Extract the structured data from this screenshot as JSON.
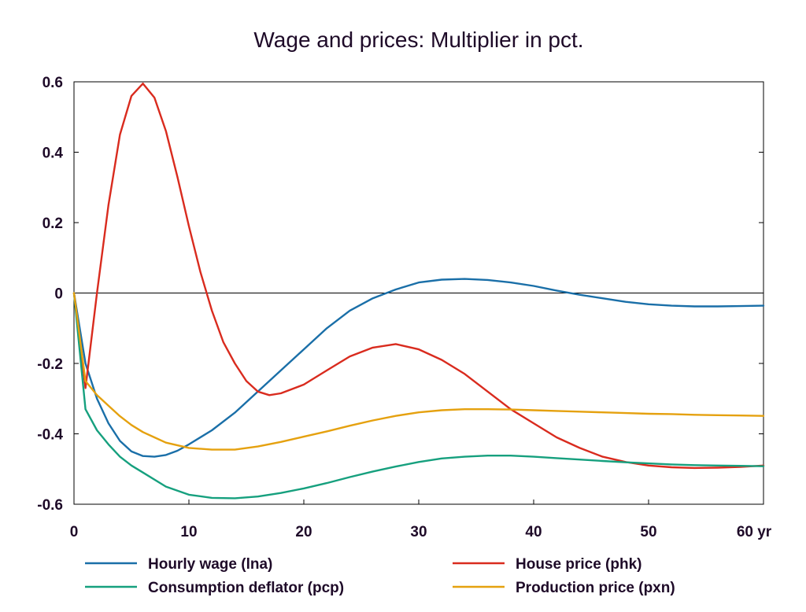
{
  "chart_data": {
    "type": "line",
    "title": "Wage and prices: Multiplier in pct.",
    "xlabel": "",
    "ylabel": "",
    "x_unit_label": "yr",
    "xlim": [
      0,
      60
    ],
    "ylim": [
      -0.6,
      0.6
    ],
    "x_ticks": [
      0,
      10,
      20,
      30,
      40,
      50,
      60
    ],
    "x_tick_labels": [
      "0",
      "10",
      "20",
      "30",
      "40",
      "50",
      "60 yr"
    ],
    "y_ticks": [
      -0.6,
      -0.4,
      -0.2,
      0,
      0.2,
      0.4,
      0.6
    ],
    "y_tick_labels": [
      "-0.6",
      "-0.4",
      "-0.2",
      "0",
      "0.2",
      "0.4",
      "0.6"
    ],
    "grid": false,
    "zero_line": true,
    "legend_position": "bottom",
    "series": [
      {
        "name": "Hourly wage (lna)",
        "color": "#1a6fa8",
        "x": [
          0,
          1,
          2,
          3,
          4,
          5,
          6,
          7,
          8,
          9,
          10,
          12,
          14,
          16,
          18,
          20,
          22,
          24,
          26,
          28,
          30,
          32,
          34,
          36,
          38,
          40,
          42,
          44,
          46,
          48,
          50,
          52,
          54,
          56,
          58,
          60
        ],
        "y": [
          0,
          -0.2,
          -0.3,
          -0.37,
          -0.42,
          -0.45,
          -0.463,
          -0.465,
          -0.46,
          -0.448,
          -0.43,
          -0.39,
          -0.34,
          -0.28,
          -0.22,
          -0.16,
          -0.1,
          -0.05,
          -0.015,
          0.01,
          0.03,
          0.038,
          0.04,
          0.037,
          0.03,
          0.02,
          0.007,
          -0.005,
          -0.015,
          -0.025,
          -0.032,
          -0.036,
          -0.038,
          -0.038,
          -0.037,
          -0.036
        ]
      },
      {
        "name": "House price (phk)",
        "color": "#d92b1e",
        "x": [
          0,
          1,
          2,
          3,
          4,
          5,
          6,
          7,
          8,
          9,
          10,
          11,
          12,
          13,
          14,
          15,
          16,
          17,
          18,
          20,
          22,
          24,
          26,
          28,
          30,
          32,
          34,
          36,
          38,
          40,
          42,
          44,
          46,
          48,
          50,
          52,
          54,
          56,
          58,
          60
        ],
        "y": [
          0,
          -0.27,
          0.0,
          0.25,
          0.45,
          0.56,
          0.595,
          0.555,
          0.46,
          0.33,
          0.19,
          0.06,
          -0.05,
          -0.14,
          -0.2,
          -0.25,
          -0.28,
          -0.29,
          -0.285,
          -0.26,
          -0.22,
          -0.18,
          -0.155,
          -0.145,
          -0.16,
          -0.19,
          -0.23,
          -0.28,
          -0.33,
          -0.37,
          -0.41,
          -0.44,
          -0.465,
          -0.48,
          -0.49,
          -0.495,
          -0.497,
          -0.496,
          -0.494,
          -0.49
        ]
      },
      {
        "name": "Consumption deflator (pcp)",
        "color": "#16a07e",
        "x": [
          0,
          1,
          2,
          3,
          4,
          5,
          6,
          8,
          10,
          12,
          14,
          16,
          18,
          20,
          22,
          24,
          26,
          28,
          30,
          32,
          34,
          36,
          38,
          40,
          42,
          44,
          46,
          48,
          50,
          52,
          54,
          56,
          58,
          60
        ],
        "y": [
          0,
          -0.33,
          -0.39,
          -0.43,
          -0.465,
          -0.49,
          -0.51,
          -0.55,
          -0.573,
          -0.582,
          -0.583,
          -0.578,
          -0.568,
          -0.555,
          -0.54,
          -0.523,
          -0.507,
          -0.493,
          -0.48,
          -0.47,
          -0.465,
          -0.462,
          -0.462,
          -0.465,
          -0.469,
          -0.473,
          -0.477,
          -0.481,
          -0.484,
          -0.487,
          -0.489,
          -0.49,
          -0.491,
          -0.492
        ]
      },
      {
        "name": "Production price (pxn)",
        "color": "#e5a10f",
        "x": [
          0,
          1,
          2,
          3,
          4,
          5,
          6,
          7,
          8,
          10,
          12,
          14,
          16,
          18,
          20,
          22,
          24,
          26,
          28,
          30,
          32,
          34,
          36,
          38,
          40,
          42,
          44,
          46,
          48,
          50,
          52,
          54,
          56,
          58,
          60
        ],
        "y": [
          0,
          -0.25,
          -0.29,
          -0.32,
          -0.35,
          -0.375,
          -0.395,
          -0.41,
          -0.425,
          -0.44,
          -0.445,
          -0.445,
          -0.436,
          -0.423,
          -0.408,
          -0.393,
          -0.377,
          -0.362,
          -0.349,
          -0.339,
          -0.333,
          -0.33,
          -0.33,
          -0.331,
          -0.333,
          -0.335,
          -0.337,
          -0.339,
          -0.341,
          -0.343,
          -0.344,
          -0.346,
          -0.347,
          -0.348,
          -0.349
        ]
      }
    ]
  }
}
